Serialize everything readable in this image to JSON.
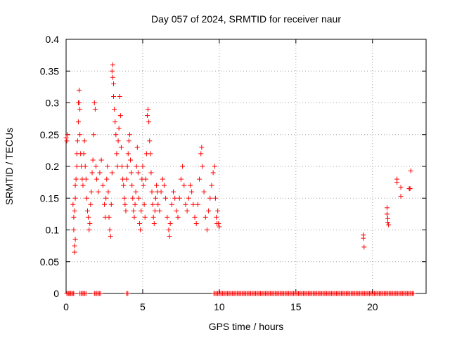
{
  "chart_data": {
    "type": "scatter",
    "title": "Day 057 of 2024, SRMTID for receiver naur",
    "xlabel": "GPS time / hours",
    "ylabel": "SRMTID / TECUs",
    "xlim": [
      0,
      23.5
    ],
    "ylim": [
      0,
      0.4
    ],
    "xticks": [
      0,
      5,
      10,
      15,
      20
    ],
    "xtick_labels": [
      "0",
      "5",
      "10",
      "15",
      "20"
    ],
    "yticks": [
      0,
      0.05,
      0.1,
      0.15,
      0.2,
      0.25,
      0.3,
      0.35,
      0.4
    ],
    "ytick_labels": [
      "0",
      "0.05",
      "0.1",
      "0.15",
      "0.2",
      "0.25",
      "0.3",
      "0.35",
      "0.4"
    ],
    "grid": true,
    "marker": "+",
    "color": "#ff0000",
    "series": [
      {
        "name": "SRMTID",
        "points": [
          [
            0.0,
            0.245
          ],
          [
            0.05,
            0.24
          ],
          [
            0.1,
            0.25
          ],
          [
            0.15,
            0.0
          ],
          [
            0.3,
            0.0
          ],
          [
            0.5,
            0.0
          ],
          [
            0.45,
            0.14
          ],
          [
            0.5,
            0.12
          ],
          [
            0.5,
            0.1
          ],
          [
            0.55,
            0.075
          ],
          [
            0.55,
            0.065
          ],
          [
            0.6,
            0.085
          ],
          [
            0.55,
            0.13
          ],
          [
            0.6,
            0.15
          ],
          [
            0.6,
            0.17
          ],
          [
            0.65,
            0.18
          ],
          [
            0.7,
            0.2
          ],
          [
            0.7,
            0.22
          ],
          [
            0.75,
            0.24
          ],
          [
            0.8,
            0.27
          ],
          [
            0.8,
            0.3
          ],
          [
            0.85,
            0.32
          ],
          [
            0.85,
            0.3
          ],
          [
            0.9,
            0.29
          ],
          [
            0.9,
            0.25
          ],
          [
            0.95,
            0.22
          ],
          [
            1.0,
            0.2
          ],
          [
            1.05,
            0.18
          ],
          [
            1.1,
            0.17
          ],
          [
            1.15,
            0.22
          ],
          [
            1.2,
            0.24
          ],
          [
            1.25,
            0.2
          ],
          [
            1.3,
            0.18
          ],
          [
            1.35,
            0.15
          ],
          [
            1.4,
            0.13
          ],
          [
            1.45,
            0.12
          ],
          [
            1.5,
            0.1
          ],
          [
            1.55,
            0.11
          ],
          [
            1.6,
            0.14
          ],
          [
            1.65,
            0.16
          ],
          [
            1.7,
            0.19
          ],
          [
            1.75,
            0.21
          ],
          [
            1.8,
            0.25
          ],
          [
            1.85,
            0.3
          ],
          [
            1.9,
            0.29
          ],
          [
            1.95,
            0.2
          ],
          [
            2.0,
            0.18
          ],
          [
            2.1,
            0.16
          ],
          [
            2.2,
            0.19
          ],
          [
            2.3,
            0.21
          ],
          [
            2.4,
            0.17
          ],
          [
            2.5,
            0.14
          ],
          [
            2.55,
            0.12
          ],
          [
            2.6,
            0.15
          ],
          [
            2.65,
            0.18
          ],
          [
            2.7,
            0.2
          ],
          [
            2.75,
            0.16
          ],
          [
            2.8,
            0.12
          ],
          [
            2.85,
            0.1
          ],
          [
            2.9,
            0.09
          ],
          [
            2.95,
            0.14
          ],
          [
            3.0,
            0.19
          ],
          [
            3.0,
            0.35
          ],
          [
            3.05,
            0.36
          ],
          [
            3.05,
            0.34
          ],
          [
            3.1,
            0.33
          ],
          [
            3.1,
            0.31
          ],
          [
            3.15,
            0.29
          ],
          [
            3.2,
            0.27
          ],
          [
            3.25,
            0.25
          ],
          [
            3.3,
            0.22
          ],
          [
            3.35,
            0.2
          ],
          [
            3.4,
            0.24
          ],
          [
            3.45,
            0.26
          ],
          [
            3.5,
            0.31
          ],
          [
            3.55,
            0.28
          ],
          [
            3.6,
            0.23
          ],
          [
            3.65,
            0.2
          ],
          [
            3.7,
            0.18
          ],
          [
            3.75,
            0.17
          ],
          [
            3.8,
            0.15
          ],
          [
            3.85,
            0.14
          ],
          [
            3.9,
            0.13
          ],
          [
            3.95,
            0.18
          ],
          [
            4.0,
            0.2
          ],
          [
            4.05,
            0.22
          ],
          [
            4.1,
            0.24
          ],
          [
            4.15,
            0.25
          ],
          [
            4.2,
            0.21
          ],
          [
            4.25,
            0.19
          ],
          [
            4.3,
            0.17
          ],
          [
            4.35,
            0.15
          ],
          [
            4.4,
            0.13
          ],
          [
            4.45,
            0.12
          ],
          [
            4.5,
            0.14
          ],
          [
            4.55,
            0.16
          ],
          [
            4.6,
            0.2
          ],
          [
            4.65,
            0.23
          ],
          [
            4.7,
            0.19
          ],
          [
            4.75,
            0.15
          ],
          [
            4.8,
            0.11
          ],
          [
            4.85,
            0.1
          ],
          [
            4.9,
            0.13
          ],
          [
            4.95,
            0.18
          ],
          [
            5.0,
            0.2
          ],
          [
            5.05,
            0.17
          ],
          [
            5.1,
            0.14
          ],
          [
            5.15,
            0.12
          ],
          [
            5.2,
            0.18
          ],
          [
            5.25,
            0.22
          ],
          [
            5.3,
            0.28
          ],
          [
            5.35,
            0.29
          ],
          [
            5.4,
            0.27
          ],
          [
            5.45,
            0.24
          ],
          [
            5.5,
            0.22
          ],
          [
            5.55,
            0.19
          ],
          [
            5.6,
            0.16
          ],
          [
            5.65,
            0.14
          ],
          [
            5.7,
            0.12
          ],
          [
            5.75,
            0.11
          ],
          [
            5.8,
            0.13
          ],
          [
            5.85,
            0.15
          ],
          [
            5.9,
            0.17
          ],
          [
            5.95,
            0.16
          ],
          [
            6.0,
            0.14
          ],
          [
            6.1,
            0.13
          ],
          [
            6.2,
            0.16
          ],
          [
            6.3,
            0.18
          ],
          [
            6.4,
            0.17
          ],
          [
            6.5,
            0.15
          ],
          [
            6.6,
            0.12
          ],
          [
            6.7,
            0.1
          ],
          [
            6.75,
            0.09
          ],
          [
            6.8,
            0.11
          ],
          [
            6.9,
            0.14
          ],
          [
            7.0,
            0.16
          ],
          [
            7.1,
            0.15
          ],
          [
            7.2,
            0.13
          ],
          [
            7.3,
            0.12
          ],
          [
            7.4,
            0.15
          ],
          [
            7.5,
            0.18
          ],
          [
            7.6,
            0.2
          ],
          [
            7.7,
            0.17
          ],
          [
            7.8,
            0.14
          ],
          [
            7.9,
            0.13
          ],
          [
            8.0,
            0.15
          ],
          [
            8.1,
            0.17
          ],
          [
            8.2,
            0.16
          ],
          [
            8.3,
            0.14
          ],
          [
            8.4,
            0.12
          ],
          [
            8.5,
            0.11
          ],
          [
            8.6,
            0.14
          ],
          [
            8.7,
            0.18
          ],
          [
            8.8,
            0.22
          ],
          [
            8.85,
            0.23
          ],
          [
            8.9,
            0.2
          ],
          [
            9.0,
            0.16
          ],
          [
            9.1,
            0.12
          ],
          [
            9.2,
            0.1
          ],
          [
            9.3,
            0.13
          ],
          [
            9.4,
            0.15
          ],
          [
            9.5,
            0.17
          ],
          [
            9.6,
            0.19
          ],
          [
            9.7,
            0.2
          ],
          [
            9.75,
            0.15
          ],
          [
            9.8,
            0.12
          ],
          [
            9.85,
            0.11
          ],
          [
            9.9,
            0.13
          ],
          [
            9.95,
            0.11
          ],
          [
            10.0,
            0.105
          ],
          [
            19.4,
            0.092
          ],
          [
            19.4,
            0.087
          ],
          [
            19.45,
            0.073
          ],
          [
            20.95,
            0.135
          ],
          [
            20.95,
            0.125
          ],
          [
            21.0,
            0.118
          ],
          [
            21.0,
            0.112
          ],
          [
            21.05,
            0.108
          ],
          [
            21.6,
            0.18
          ],
          [
            21.6,
            0.175
          ],
          [
            21.85,
            0.167
          ],
          [
            21.85,
            0.153
          ],
          [
            22.4,
            0.165
          ],
          [
            22.45,
            0.165
          ],
          [
            22.5,
            0.193
          ]
        ],
        "zero_ranges": [
          [
            0.05,
            0.5
          ],
          [
            0.9,
            1.3
          ],
          [
            1.85,
            2.25
          ],
          [
            3.95,
            4.1
          ],
          [
            9.65,
            22.75
          ]
        ]
      }
    ]
  }
}
